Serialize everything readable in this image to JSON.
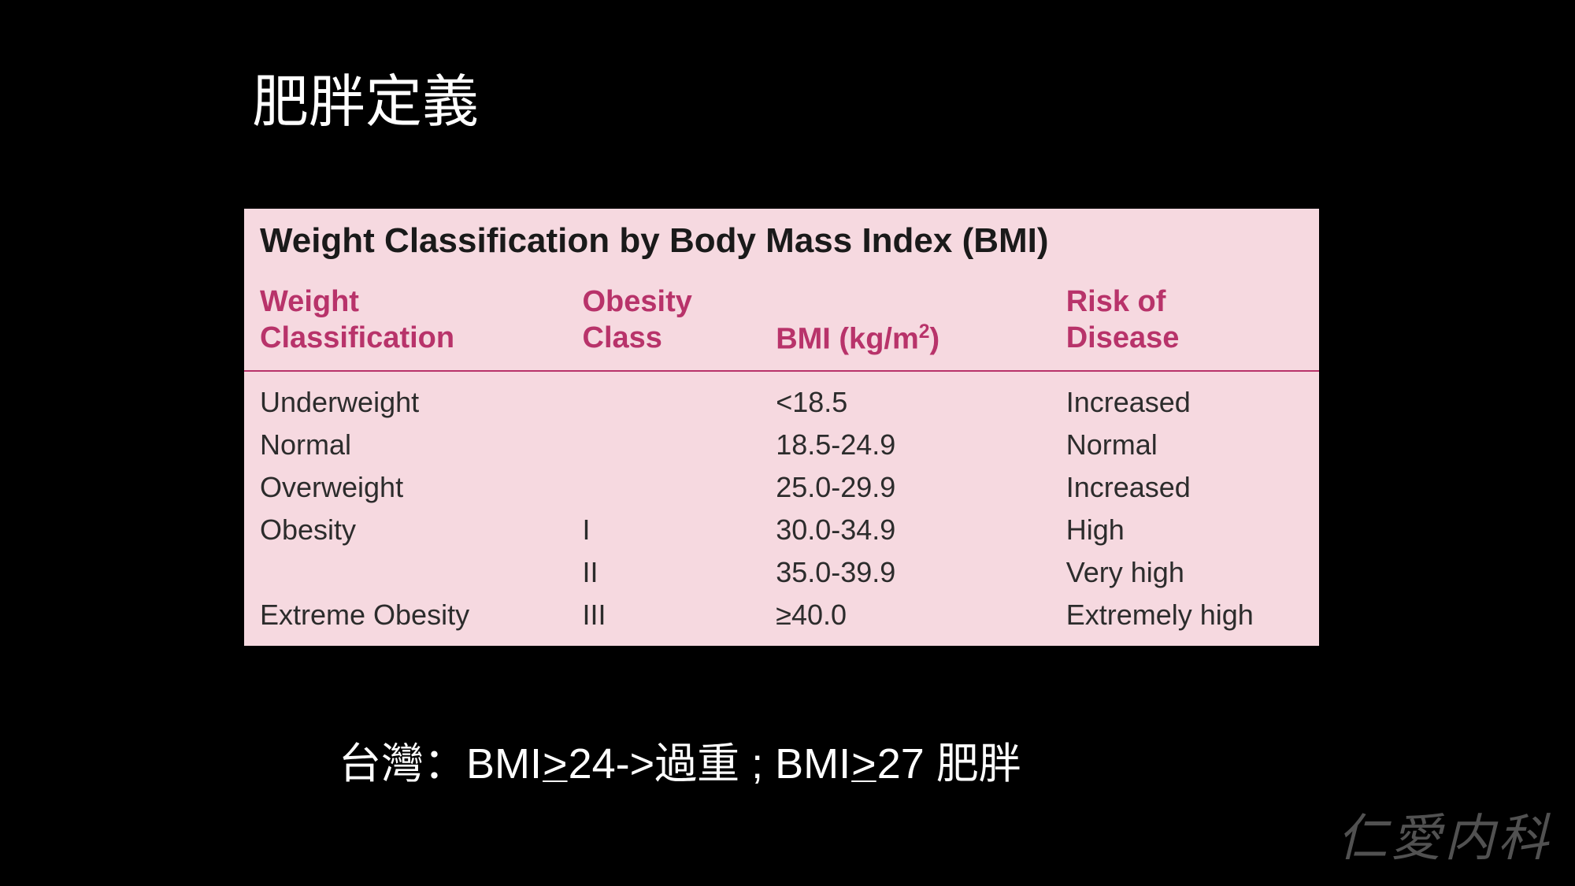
{
  "slide": {
    "title": "肥胖定義",
    "background_color": "#000000",
    "title_color": "#ffffff",
    "title_fontsize": 72
  },
  "table": {
    "title": "Weight Classification by Body Mass Index (BMI)",
    "background_color": "#f6d9e0",
    "header_text_color": "#b8336a",
    "body_text_color": "#2c2c2c",
    "title_text_color": "#1a1a1a",
    "border_color": "#b8336a",
    "title_fontsize": 44,
    "header_fontsize": 38,
    "body_fontsize": 36,
    "columns": [
      {
        "label_line1": "Weight",
        "label_line2": "Classification",
        "key": "weight",
        "width": "30%"
      },
      {
        "label_line1": "Obesity",
        "label_line2": "Class",
        "key": "obesity",
        "width": "18%"
      },
      {
        "label_line1": "BMI (kg/m",
        "label_sup": "2",
        "label_line1_end": ")",
        "key": "bmi",
        "width": "27%"
      },
      {
        "label_line1": "Risk of",
        "label_line2": "Disease",
        "key": "risk",
        "width": "25%"
      }
    ],
    "rows": [
      {
        "weight": "Underweight",
        "obesity": "",
        "bmi": "<18.5",
        "risk": "Increased"
      },
      {
        "weight": "Normal",
        "obesity": "",
        "bmi": "18.5-24.9",
        "risk": "Normal"
      },
      {
        "weight": "Overweight",
        "obesity": "",
        "bmi": "25.0-29.9",
        "risk": "Increased"
      },
      {
        "weight": "Obesity",
        "obesity": "I",
        "bmi": "30.0-34.9",
        "risk": "High"
      },
      {
        "weight": "",
        "obesity": "II",
        "bmi": "35.0-39.9",
        "risk": "Very high"
      },
      {
        "weight": "Extreme Obesity",
        "obesity": "III",
        "bmi": "≥40.0",
        "risk": "Extremely high"
      }
    ]
  },
  "footnote": {
    "prefix": "台灣：BMI",
    "ge1": ">",
    "mid1": "24->過重 ; BMI",
    "ge2": ">",
    "suffix": "27 肥胖",
    "color": "#ffffff",
    "fontsize": 54
  },
  "watermark": {
    "text": "仁愛内科",
    "color": "#888888",
    "fontsize": 64
  }
}
